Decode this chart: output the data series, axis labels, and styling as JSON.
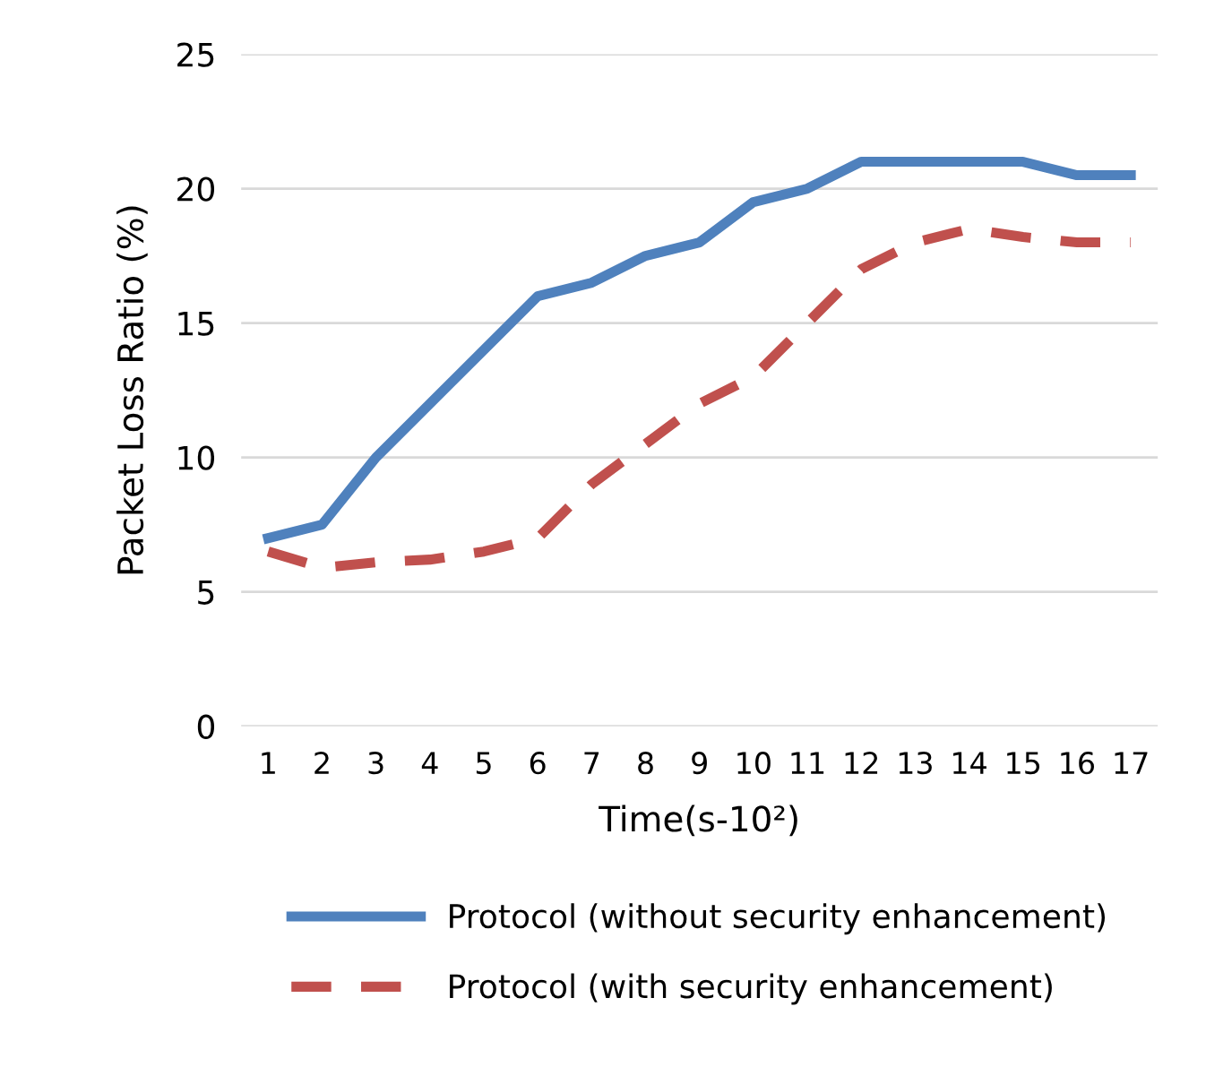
{
  "chart_data": {
    "type": "line",
    "xlabel": "Time(s-10²)",
    "ylabel": "Packet Loss Ratio (%)",
    "categories": [
      "1",
      "2",
      "3",
      "4",
      "5",
      "6",
      "7",
      "8",
      "9",
      "10",
      "11",
      "12",
      "13",
      "14",
      "15",
      "16",
      "17"
    ],
    "series": [
      {
        "name": "Protocol (without security enhancement)",
        "color": "#4f81bd",
        "line_style": "solid",
        "values": [
          7,
          7.5,
          10,
          12,
          14,
          16,
          16.5,
          17.5,
          18,
          19.5,
          20,
          21,
          21,
          21,
          21,
          20.5,
          20.5
        ]
      },
      {
        "name": "Protocol (with security enhancement)",
        "color": "#c0504d",
        "line_style": "dashed",
        "values": [
          6.5,
          5.9,
          6.1,
          6.2,
          6.5,
          7,
          9,
          10.5,
          12,
          13,
          15,
          17,
          18,
          18.5,
          18.2,
          18,
          18
        ]
      }
    ],
    "ylim": [
      0,
      25
    ],
    "yticks": [
      0,
      5,
      10,
      15,
      20,
      25
    ],
    "grid": "y",
    "legend": "bottom"
  }
}
